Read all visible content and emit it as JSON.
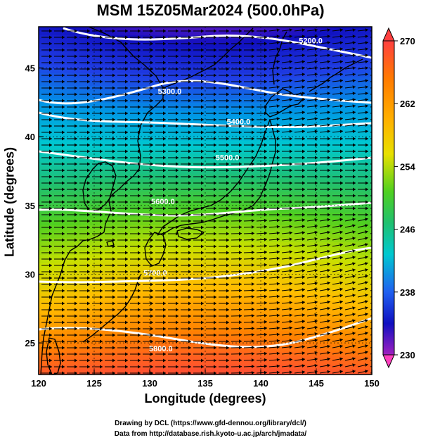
{
  "title": "MSM 15Z05Mar2024 (500.0hPa)",
  "x_axis": {
    "label": "Longitude (degrees)",
    "ticks": [
      "120",
      "125",
      "130",
      "135",
      "140",
      "145",
      "150"
    ]
  },
  "y_axis": {
    "label": "Latitude  (degrees)",
    "ticks": [
      "25",
      "30",
      "35",
      "40",
      "45"
    ]
  },
  "colorbar": {
    "ticks": [
      "270",
      "262",
      "254",
      "246",
      "238",
      "230"
    ],
    "min": 230,
    "max": 270
  },
  "contour_labels": [
    {
      "text": "5200.0",
      "lon": 144.5,
      "lat": 46.8
    },
    {
      "text": "5300.0",
      "lon": 131.8,
      "lat": 43.1
    },
    {
      "text": "5400.0",
      "lon": 138.0,
      "lat": 40.9
    },
    {
      "text": "5500.0",
      "lon": 137.0,
      "lat": 38.3
    },
    {
      "text": "5600.0",
      "lon": 131.2,
      "lat": 35.1
    },
    {
      "text": "5700.0",
      "lon": 130.5,
      "lat": 29.9
    },
    {
      "text": "5800.0",
      "lon": 131.0,
      "lat": 24.4
    }
  ],
  "footer": {
    "line1": "Drawing by DCL (https://www.gfd-dennou.org/library/dcl/)",
    "line2": "Data from http://database.rish.kyoto-u.ac.jp/arch/jmadata/"
  },
  "colors": {
    "contour": "#ffffff",
    "vectors": "#000000",
    "coast": "#000000"
  }
}
